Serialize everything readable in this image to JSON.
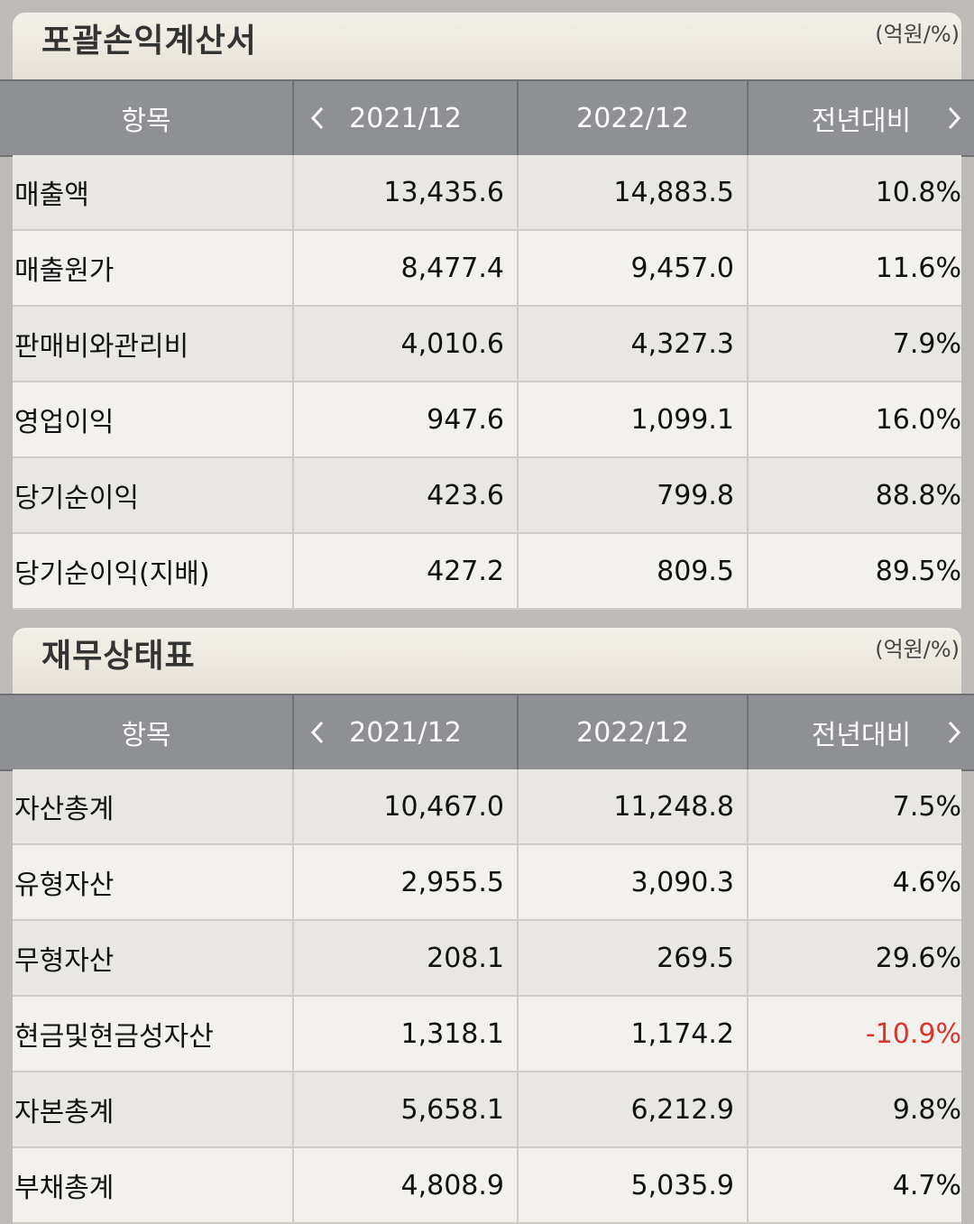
{
  "income_statement": {
    "title": "포괄손익계산서",
    "unit": "(억원/%)",
    "headers": {
      "item": "항목",
      "col1": "2021/12",
      "col2": "2022/12",
      "col3": "전년대비"
    },
    "rows": [
      {
        "item": "매출액",
        "v1": "13,435.6",
        "v2": "14,883.5",
        "yoy": "10.8%"
      },
      {
        "item": "매출원가",
        "v1": "8,477.4",
        "v2": "9,457.0",
        "yoy": "11.6%"
      },
      {
        "item": "판매비와관리비",
        "v1": "4,010.6",
        "v2": "4,327.3",
        "yoy": "7.9%"
      },
      {
        "item": "영업이익",
        "v1": "947.6",
        "v2": "1,099.1",
        "yoy": "16.0%"
      },
      {
        "item": "당기순이익",
        "v1": "423.6",
        "v2": "799.8",
        "yoy": "88.8%"
      },
      {
        "item": "당기순이익(지배)",
        "v1": "427.2",
        "v2": "809.5",
        "yoy": "89.5%"
      }
    ]
  },
  "balance_sheet": {
    "title": "재무상태표",
    "unit": "(억원/%)",
    "headers": {
      "item": "항목",
      "col1": "2021/12",
      "col2": "2022/12",
      "col3": "전년대비"
    },
    "rows": [
      {
        "item": "자산총계",
        "v1": "10,467.0",
        "v2": "11,248.8",
        "yoy": "7.5%"
      },
      {
        "item": "유형자산",
        "v1": "2,955.5",
        "v2": "3,090.3",
        "yoy": "4.6%"
      },
      {
        "item": "무형자산",
        "v1": "208.1",
        "v2": "269.5",
        "yoy": "29.6%"
      },
      {
        "item": "현금및현금성자산",
        "v1": "1,318.1",
        "v2": "1,174.2",
        "yoy": "-10.9%"
      },
      {
        "item": "자본총계",
        "v1": "5,658.1",
        "v2": "6,212.9",
        "yoy": "9.8%"
      },
      {
        "item": "부채총계",
        "v1": "4,808.9",
        "v2": "5,035.9",
        "yoy": "4.7%"
      }
    ]
  },
  "colors": {
    "header_bg": "#8e9093",
    "negative": "#d9352a"
  },
  "icons": {
    "prev": "chevron-left-icon",
    "next": "chevron-right-icon"
  }
}
